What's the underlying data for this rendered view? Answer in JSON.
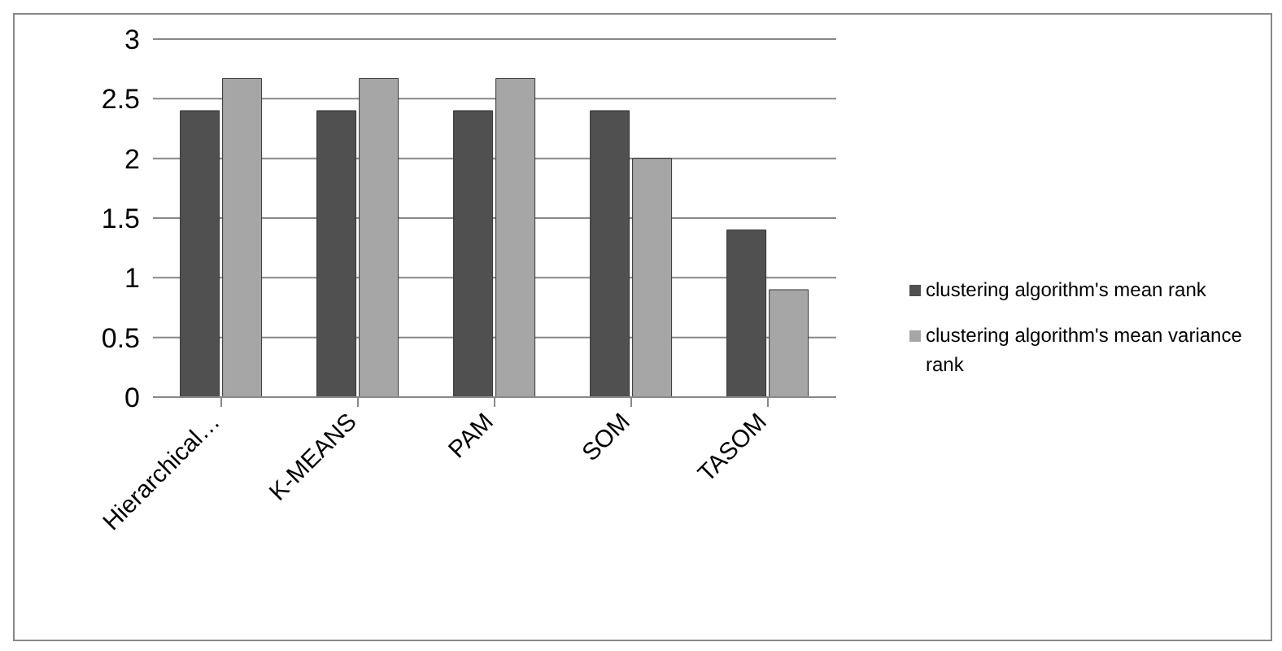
{
  "chart_data": {
    "type": "bar",
    "categories": [
      "Hierarchical…",
      "K-MEANS",
      "PAM",
      "SOM",
      "TASOM"
    ],
    "series": [
      {
        "name": "clustering algorithm's mean rank",
        "color": "#505050",
        "values": [
          2.4,
          2.4,
          2.4,
          2.4,
          1.4
        ]
      },
      {
        "name": "clustering algorithm's mean variance rank",
        "color": "#a6a6a6",
        "values": [
          2.67,
          2.67,
          2.67,
          2.0,
          0.9
        ]
      }
    ],
    "ylim": [
      0,
      3
    ],
    "yticks": [
      0,
      0.5,
      1,
      1.5,
      2,
      2.5,
      3
    ],
    "grid": "y",
    "legend": "right"
  }
}
